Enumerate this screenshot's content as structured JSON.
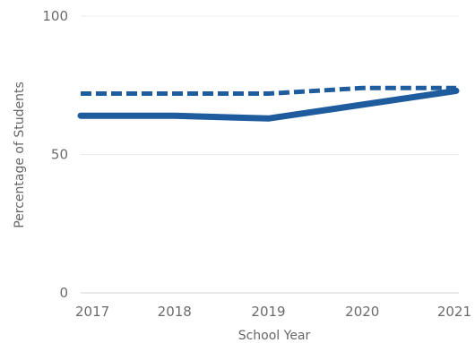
{
  "chart_data": {
    "type": "line",
    "title": "",
    "xlabel": "School Year",
    "ylabel": "Percentage of Students",
    "x": [
      "2017",
      "2018",
      "2019",
      "2020",
      "2021"
    ],
    "ylim": [
      0,
      100
    ],
    "yticks": [
      "0",
      "50",
      "100"
    ],
    "grid": true,
    "legend": "none",
    "series": [
      {
        "line_style": "solid",
        "color": "#1f5c9e",
        "values": [
          64,
          64,
          63,
          68,
          73
        ]
      },
      {
        "line_style": "dashed",
        "color": "#1f5c9e",
        "values": [
          72,
          72,
          72,
          74,
          74
        ]
      }
    ]
  }
}
